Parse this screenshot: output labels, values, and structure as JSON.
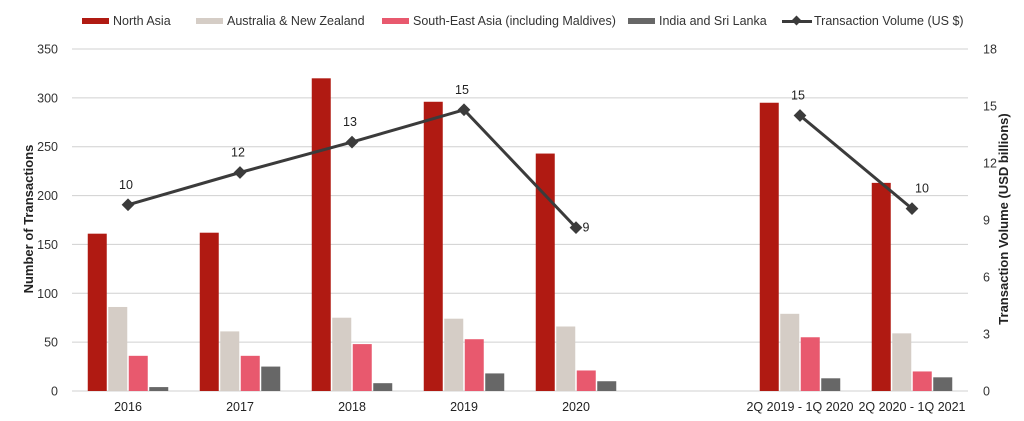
{
  "legend": {
    "items": [
      {
        "label": "North Asia",
        "color": "#b01a12",
        "kind": "bar"
      },
      {
        "label": "Australia & New Zealand",
        "color": "#d5cdc6",
        "kind": "bar"
      },
      {
        "label": "South-East Asia (including Maldives)",
        "color": "#e8596e",
        "kind": "bar"
      },
      {
        "label": "India and Sri Lanka",
        "color": "#676767",
        "kind": "bar"
      },
      {
        "label": "Transaction Volume (US $)",
        "color": "#3b3b3b",
        "kind": "line"
      }
    ]
  },
  "chart_data": {
    "type": "bar",
    "title": "",
    "categories": [
      "2016",
      "2017",
      "2018",
      "2019",
      "2020",
      "",
      "2Q 2019 - 1Q 2020",
      "2Q 2020 - 1Q 2021"
    ],
    "xlabel": "",
    "ylabel": "Number of Transactions",
    "ylabel_right": "Transaction Volume (USD billions)",
    "ylim": [
      0,
      350
    ],
    "yticks": [
      0,
      50,
      100,
      150,
      200,
      250,
      300,
      350
    ],
    "ylim_right": [
      0,
      18
    ],
    "yticks_right": [
      0,
      3,
      6,
      9,
      12,
      15,
      18
    ],
    "grid": true,
    "legend_position": "top",
    "series": [
      {
        "name": "North Asia",
        "type": "bar",
        "axis": "left",
        "color": "#b01a12",
        "values": [
          161,
          162,
          320,
          296,
          243,
          null,
          295,
          213
        ]
      },
      {
        "name": "Australia & New Zealand",
        "type": "bar",
        "axis": "left",
        "color": "#d5cdc6",
        "values": [
          86,
          61,
          75,
          74,
          66,
          null,
          79,
          59
        ]
      },
      {
        "name": "South-East Asia (including Maldives)",
        "type": "bar",
        "axis": "left",
        "color": "#e8596e",
        "values": [
          36,
          36,
          48,
          53,
          21,
          null,
          55,
          20
        ]
      },
      {
        "name": "India and Sri Lanka",
        "type": "bar",
        "axis": "left",
        "color": "#676767",
        "values": [
          4,
          25,
          8,
          18,
          10,
          null,
          13,
          14
        ]
      },
      {
        "name": "Transaction Volume (US $)",
        "type": "line",
        "axis": "right",
        "color": "#3b3b3b",
        "values": [
          9.8,
          11.5,
          13.1,
          14.8,
          8.6,
          null,
          14.5,
          9.6
        ],
        "data_labels": [
          "10",
          "12",
          "13",
          "15",
          "9",
          "",
          "15",
          "10"
        ],
        "segments": [
          [
            0,
            4
          ],
          [
            6,
            7
          ]
        ]
      }
    ]
  }
}
